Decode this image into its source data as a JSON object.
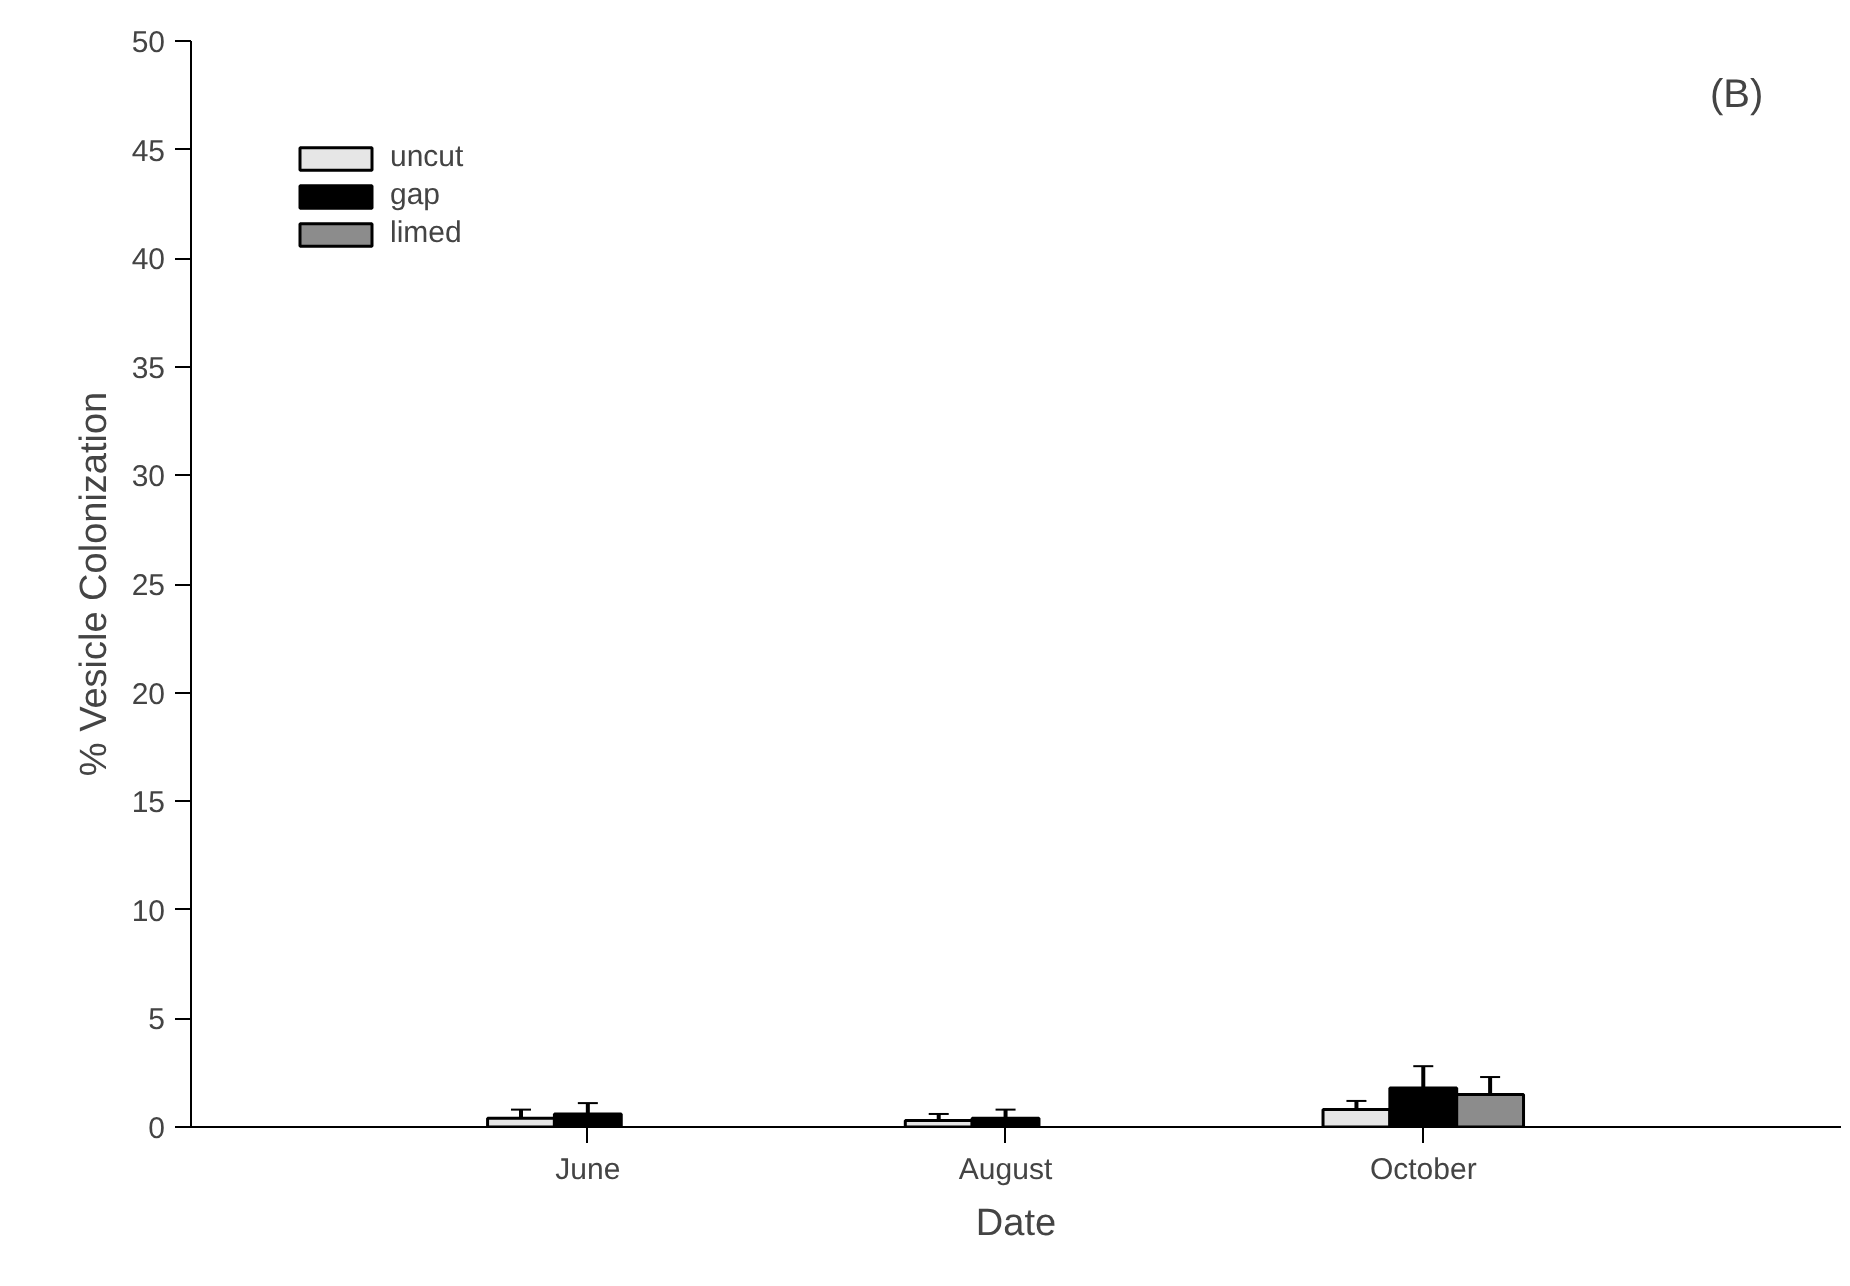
{
  "chart_data": {
    "type": "bar",
    "xlabel": "Date",
    "ylabel": "% Vesicle Colonization",
    "categories": [
      "June",
      "August",
      "October"
    ],
    "series": [
      {
        "name": "uncut",
        "color": "#e6e6e6",
        "values": [
          0.4,
          0.3,
          0.8
        ],
        "errors": [
          0.4,
          0.3,
          0.4
        ]
      },
      {
        "name": "gap",
        "color": "#000000",
        "values": [
          0.6,
          0.4,
          1.8
        ],
        "errors": [
          0.5,
          0.4,
          1.0
        ]
      },
      {
        "name": "limed",
        "color": "#8c8c8c",
        "values": [
          null,
          null,
          1.5
        ],
        "errors": [
          null,
          null,
          0.8
        ]
      }
    ],
    "ylim": [
      0,
      50
    ],
    "yticks": [
      0,
      5,
      10,
      15,
      20,
      25,
      30,
      35,
      40,
      45,
      50
    ],
    "grid": false,
    "legend": "top left",
    "annotations": [
      "(B)"
    ]
  }
}
